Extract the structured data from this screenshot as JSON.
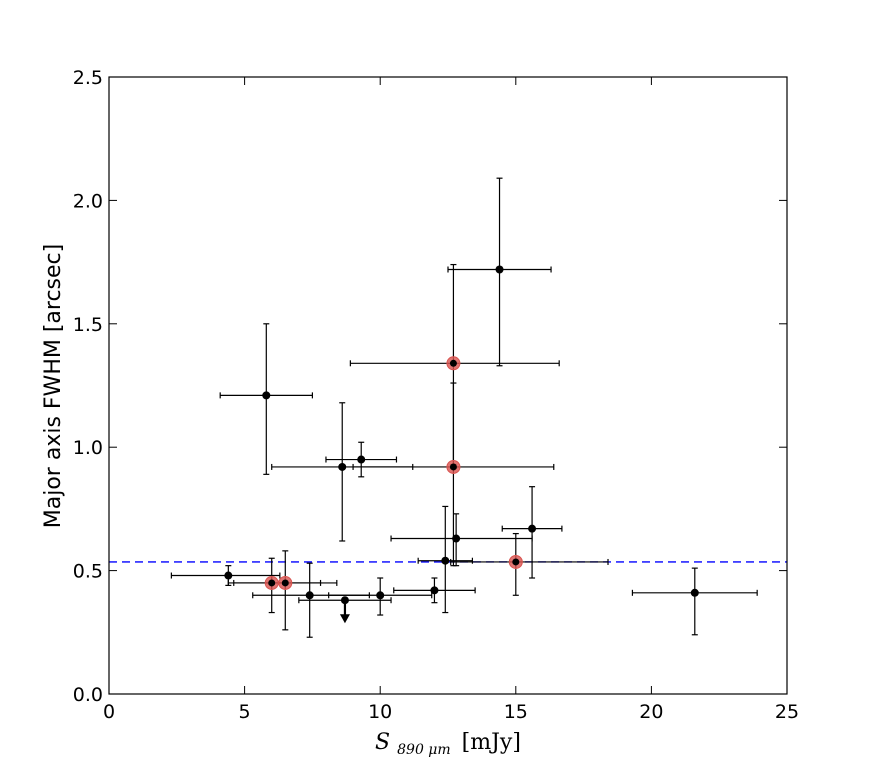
{
  "chart_data": {
    "type": "scatter",
    "title": "",
    "xlabel": "S_890 μm [mJy]",
    "xlabel_main": "S",
    "xlabel_sub": "890 μm",
    "xlabel_unit": "[mJy]",
    "ylabel": "Major axis FWHM [arcsec]",
    "xlim": [
      0,
      25
    ],
    "ylim": [
      0,
      2.5
    ],
    "xticks": [
      0,
      5,
      10,
      15,
      20,
      25
    ],
    "yticks": [
      0.0,
      0.5,
      1.0,
      1.5,
      2.0,
      2.5
    ],
    "xtick_labels": [
      "0",
      "5",
      "10",
      "15",
      "20",
      "25"
    ],
    "ytick_labels": [
      "0.0",
      "0.5",
      "1.0",
      "1.5",
      "2.0",
      "2.5"
    ],
    "reference_line": {
      "y": 0.535,
      "style": "dashed",
      "color": "#0000ff"
    },
    "colors": {
      "point": "#000000",
      "highlight": "#d9534f",
      "reference": "#0000ff",
      "errorbar": "#000000"
    },
    "series": [
      {
        "name": "black",
        "points": [
          {
            "x": 4.4,
            "y": 0.48,
            "xerr": [
              2.1,
              1.9
            ],
            "yerr": [
              0.04,
              0.04
            ]
          },
          {
            "x": 5.8,
            "y": 1.21,
            "xerr": [
              1.7,
              1.7
            ],
            "yerr": [
              0.32,
              0.29
            ]
          },
          {
            "x": 7.4,
            "y": 0.4,
            "xerr": [
              2.1,
              2.2
            ],
            "yerr": [
              0.17,
              0.13
            ]
          },
          {
            "x": 8.6,
            "y": 0.92,
            "xerr": [
              2.6,
              2.6
            ],
            "yerr": [
              0.3,
              0.26
            ]
          },
          {
            "x": 9.3,
            "y": 0.95,
            "xerr": [
              1.3,
              1.3
            ],
            "yerr": [
              0.07,
              0.07
            ]
          },
          {
            "x": 10.0,
            "y": 0.4,
            "xerr": [
              1.9,
              1.9
            ],
            "yerr": [
              0.08,
              0.07
            ]
          },
          {
            "x": 12.0,
            "y": 0.42,
            "xerr": [
              1.5,
              1.5
            ],
            "yerr": [
              0.05,
              0.05
            ]
          },
          {
            "x": 12.4,
            "y": 0.54,
            "xerr": [
              1.0,
              1.0
            ],
            "yerr": [
              0.21,
              0.22
            ]
          },
          {
            "x": 12.8,
            "y": 0.63,
            "xerr": [
              2.4,
              2.8
            ],
            "yerr": [
              0.11,
              0.1
            ]
          },
          {
            "x": 14.4,
            "y": 1.72,
            "xerr": [
              1.9,
              1.9
            ],
            "yerr": [
              0.39,
              0.37
            ]
          },
          {
            "x": 15.6,
            "y": 0.67,
            "xerr": [
              1.1,
              1.1
            ],
            "yerr": [
              0.2,
              0.17
            ]
          },
          {
            "x": 21.6,
            "y": 0.41,
            "xerr": [
              2.3,
              2.3
            ],
            "yerr": [
              0.17,
              0.1
            ]
          }
        ]
      },
      {
        "name": "red",
        "points": [
          {
            "x": 6.0,
            "y": 0.45,
            "xerr": [
              1.6,
              1.8
            ],
            "yerr": [
              0.12,
              0.1
            ]
          },
          {
            "x": 6.5,
            "y": 0.45,
            "xerr": [
              1.9,
              1.9
            ],
            "yerr": [
              0.19,
              0.13
            ]
          },
          {
            "x": 12.7,
            "y": 0.92,
            "xerr": [
              3.7,
              3.7
            ],
            "yerr": [
              0.4,
              0.34
            ]
          },
          {
            "x": 12.7,
            "y": 1.34,
            "xerr": [
              3.8,
              3.9
            ],
            "yerr": [
              0.41,
              0.4
            ]
          },
          {
            "x": 15.0,
            "y": 0.535,
            "xerr": [
              2.4,
              3.4
            ],
            "yerr": [
              0.135,
              0.115
            ]
          }
        ]
      }
    ],
    "upper_limit": {
      "x": 8.7,
      "y": 0.38,
      "xerr": [
        1.7,
        1.7
      ]
    }
  }
}
